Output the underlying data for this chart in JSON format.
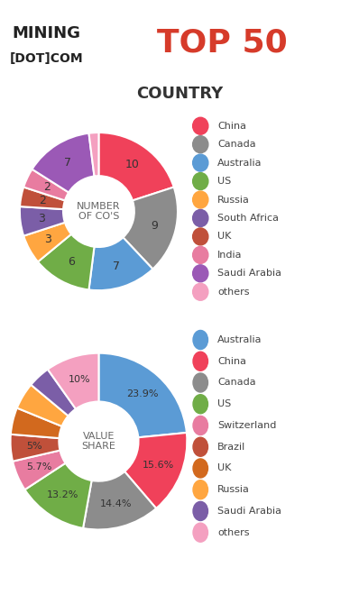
{
  "title_mining": "MINING\n[DOT]COM",
  "title_top50": "TOP 50",
  "section_label": "COUNTRY",
  "chart1": {
    "center_text": "NUMBER\nOF CO'S",
    "labels": [
      "China",
      "Canada",
      "Australia",
      "US",
      "Russia",
      "South Africa",
      "UK",
      "India",
      "Saudi Arabia",
      "others"
    ],
    "values": [
      10,
      9,
      7,
      6,
      3,
      3,
      2,
      2,
      7,
      1
    ],
    "colors": [
      "#F0415A",
      "#8C8C8C",
      "#5B9BD5",
      "#70AD47",
      "#FFA640",
      "#7B5EA7",
      "#C0503A",
      "#E87CA0",
      "#9B59B6",
      "#F4A0C0"
    ],
    "label_values": [
      "10",
      "9",
      "7",
      "6",
      "3",
      "3",
      "2",
      "2",
      "7",
      ""
    ],
    "legend_labels": [
      "China",
      "Canada",
      "Australia",
      "US",
      "Russia",
      "South Africa",
      "UK",
      "India",
      "Saudi Arabia",
      "others"
    ],
    "legend_colors": [
      "#F0415A",
      "#8C8C8C",
      "#5B9BD5",
      "#70AD47",
      "#FFA640",
      "#7B5EA7",
      "#C0503A",
      "#E87CA0",
      "#9B59B6",
      "#F4A0C0"
    ]
  },
  "chart2": {
    "center_text": "VALUE\nSHARE",
    "labels": [
      "Australia",
      "China",
      "Canada",
      "US",
      "Switzerland",
      "Brazil",
      "UK",
      "Russia",
      "Saudi Arabia",
      "others"
    ],
    "values": [
      23.9,
      15.6,
      14.4,
      13.2,
      5.7,
      5.0,
      5.0,
      5.0,
      4.2,
      10.0
    ],
    "colors": [
      "#5B9BD5",
      "#F0415A",
      "#8C8C8C",
      "#70AD47",
      "#E87CA0",
      "#C0503A",
      "#D2691E",
      "#FFA640",
      "#7B5EA7",
      "#F4A0C0"
    ],
    "label_values": [
      "23.9%",
      "15.6%",
      "14.4%",
      "13.2%",
      "5.7%",
      "5%",
      "",
      "",
      "",
      "10%"
    ],
    "legend_labels": [
      "Australia",
      "China",
      "Canada",
      "US",
      "Switzerland",
      "Brazil",
      "UK",
      "Russia",
      "Saudi Arabia",
      "others"
    ],
    "legend_colors": [
      "#5B9BD5",
      "#F0415A",
      "#8C8C8C",
      "#70AD47",
      "#E87CA0",
      "#C0503A",
      "#D2691E",
      "#FFA640",
      "#7B5EA7",
      "#F4A0C0"
    ]
  },
  "bg_color": "#FFFFFF",
  "header_bg": "#F0F0F0",
  "section_bg": "#EEEEEE"
}
